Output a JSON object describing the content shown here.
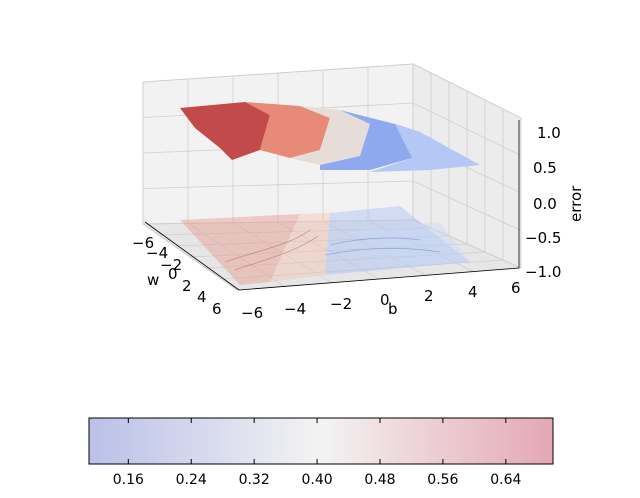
{
  "chart_data": {
    "type": "surface3d",
    "axes": {
      "x": {
        "label": "w",
        "ticks": [
          "−6",
          "−4",
          "−2",
          "0",
          "2",
          "4",
          "6"
        ],
        "lim": [
          -6,
          6
        ]
      },
      "y": {
        "label": "b",
        "ticks": [
          "−6",
          "−4",
          "−2",
          "0",
          "2",
          "4",
          "6"
        ],
        "lim": [
          -6,
          6
        ]
      },
      "z": {
        "label": "error",
        "ticks": [
          "−1.0",
          "−0.5",
          "0.0",
          "0.5",
          "1.0"
        ],
        "lim": [
          -1.0,
          1.0
        ]
      }
    },
    "surface": {
      "w_range": [
        -6,
        6
      ],
      "b_range": [
        -6,
        6
      ],
      "z_range": [
        0.1,
        0.7
      ]
    },
    "contour_offset": -1.0,
    "colormap": "coolwarm",
    "colorbar": {
      "orientation": "horizontal",
      "ticks": [
        "0.16",
        "0.24",
        "0.32",
        "0.40",
        "0.48",
        "0.56",
        "0.64"
      ],
      "tick_values": [
        0.16,
        0.24,
        0.32,
        0.4,
        0.48,
        0.56,
        0.64
      ],
      "range": [
        0.11,
        0.7
      ],
      "colors": [
        "#3b4cc0",
        "#dddddd",
        "#b40426"
      ]
    },
    "grid": true
  }
}
